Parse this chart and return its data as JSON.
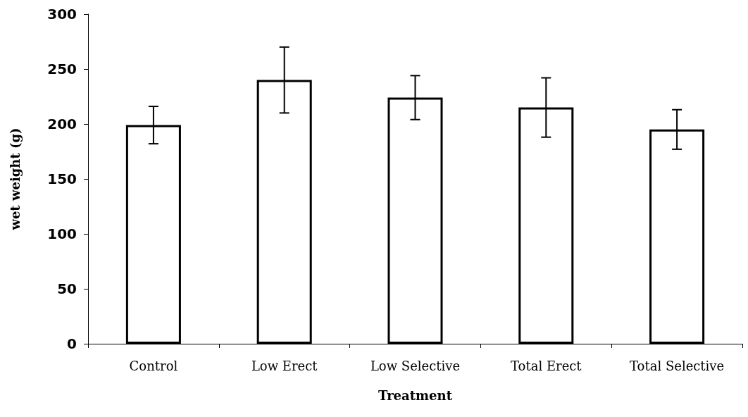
{
  "chart_data": {
    "type": "bar",
    "xlabel": "Treatment",
    "ylabel": "wet weight (g)",
    "categories": [
      "Control",
      "Low Erect",
      "Low Selective",
      "Total Erect",
      "Total Selective"
    ],
    "values": [
      199,
      240,
      224,
      215,
      195
    ],
    "errors": [
      17,
      30,
      20,
      27,
      18
    ],
    "color": "#ffffff",
    "ylim": [
      0,
      300
    ],
    "yticks": [
      0,
      50,
      100,
      150,
      200,
      250,
      300
    ],
    "grid": false
  }
}
